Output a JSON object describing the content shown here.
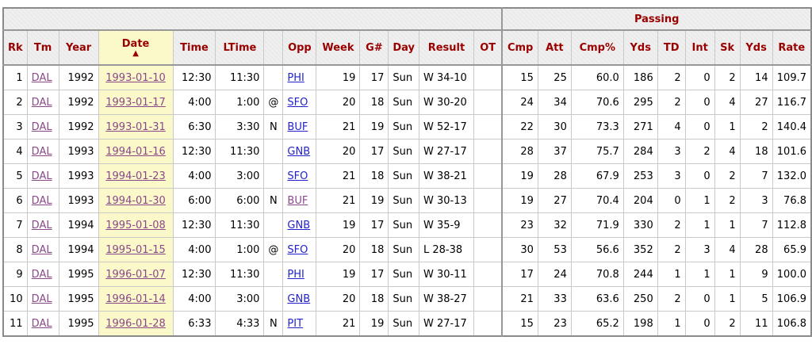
{
  "colors": {
    "header_text": "#990000",
    "header_bg": "#efefef",
    "sort_highlight": "#fbf8c9",
    "link": "#2222cc",
    "visited_link": "#8a4889"
  },
  "table": {
    "group_headers": {
      "blank": "",
      "blank_span": 13,
      "passing": "Passing",
      "passing_span": 9
    },
    "sorted_column": "date",
    "sort_indicator": "▲",
    "columns": [
      {
        "key": "rk",
        "label": "Rk",
        "link": false
      },
      {
        "key": "tm",
        "label": "Tm",
        "link": true
      },
      {
        "key": "year",
        "label": "Year",
        "link": false
      },
      {
        "key": "date",
        "label": "Date",
        "link": true
      },
      {
        "key": "time",
        "label": "Time",
        "link": false
      },
      {
        "key": "ltime",
        "label": "LTime",
        "link": false
      },
      {
        "key": "at",
        "label": "",
        "link": false
      },
      {
        "key": "opp",
        "label": "Opp",
        "link": true
      },
      {
        "key": "week",
        "label": "Week",
        "link": false
      },
      {
        "key": "g",
        "label": "G#",
        "link": false
      },
      {
        "key": "day",
        "label": "Day",
        "link": false
      },
      {
        "key": "result",
        "label": "Result",
        "link": false
      },
      {
        "key": "ot",
        "label": "OT",
        "link": false
      },
      {
        "key": "cmp",
        "label": "Cmp",
        "link": false
      },
      {
        "key": "att",
        "label": "Att",
        "link": false
      },
      {
        "key": "cmppct",
        "label": "Cmp%",
        "link": false
      },
      {
        "key": "yds",
        "label": "Yds",
        "link": false
      },
      {
        "key": "td",
        "label": "TD",
        "link": false
      },
      {
        "key": "int",
        "label": "Int",
        "link": false
      },
      {
        "key": "sk",
        "label": "Sk",
        "link": false
      },
      {
        "key": "skyds",
        "label": "Yds",
        "link": false
      },
      {
        "key": "rate",
        "label": "Rate",
        "link": false
      }
    ],
    "rows": [
      {
        "rk": "1",
        "tm": "DAL",
        "year": "1992",
        "date": "1993-01-10",
        "time": "12:30",
        "ltime": "11:30",
        "at": "",
        "opp": "PHI",
        "opp_visited": false,
        "week": "19",
        "g": "17",
        "day": "Sun",
        "result": "W 34-10",
        "ot": "",
        "cmp": "15",
        "att": "25",
        "cmppct": "60.0",
        "yds": "186",
        "td": "2",
        "int": "0",
        "sk": "2",
        "skyds": "14",
        "rate": "109.7"
      },
      {
        "rk": "2",
        "tm": "DAL",
        "year": "1992",
        "date": "1993-01-17",
        "time": "4:00",
        "ltime": "1:00",
        "at": "@",
        "opp": "SFO",
        "opp_visited": false,
        "week": "20",
        "g": "18",
        "day": "Sun",
        "result": "W 30-20",
        "ot": "",
        "cmp": "24",
        "att": "34",
        "cmppct": "70.6",
        "yds": "295",
        "td": "2",
        "int": "0",
        "sk": "4",
        "skyds": "27",
        "rate": "116.7"
      },
      {
        "rk": "3",
        "tm": "DAL",
        "year": "1992",
        "date": "1993-01-31",
        "time": "6:30",
        "ltime": "3:30",
        "at": "N",
        "opp": "BUF",
        "opp_visited": false,
        "week": "21",
        "g": "19",
        "day": "Sun",
        "result": "W 52-17",
        "ot": "",
        "cmp": "22",
        "att": "30",
        "cmppct": "73.3",
        "yds": "271",
        "td": "4",
        "int": "0",
        "sk": "1",
        "skyds": "2",
        "rate": "140.4"
      },
      {
        "rk": "4",
        "tm": "DAL",
        "year": "1993",
        "date": "1994-01-16",
        "time": "12:30",
        "ltime": "11:30",
        "at": "",
        "opp": "GNB",
        "opp_visited": false,
        "week": "20",
        "g": "17",
        "day": "Sun",
        "result": "W 27-17",
        "ot": "",
        "cmp": "28",
        "att": "37",
        "cmppct": "75.7",
        "yds": "284",
        "td": "3",
        "int": "2",
        "sk": "4",
        "skyds": "18",
        "rate": "101.6"
      },
      {
        "rk": "5",
        "tm": "DAL",
        "year": "1993",
        "date": "1994-01-23",
        "time": "4:00",
        "ltime": "3:00",
        "at": "",
        "opp": "SFO",
        "opp_visited": false,
        "week": "21",
        "g": "18",
        "day": "Sun",
        "result": "W 38-21",
        "ot": "",
        "cmp": "19",
        "att": "28",
        "cmppct": "67.9",
        "yds": "253",
        "td": "3",
        "int": "0",
        "sk": "2",
        "skyds": "7",
        "rate": "132.0"
      },
      {
        "rk": "6",
        "tm": "DAL",
        "year": "1993",
        "date": "1994-01-30",
        "time": "6:00",
        "ltime": "6:00",
        "at": "N",
        "opp": "BUF",
        "opp_visited": true,
        "week": "21",
        "g": "19",
        "day": "Sun",
        "result": "W 30-13",
        "ot": "",
        "cmp": "19",
        "att": "27",
        "cmppct": "70.4",
        "yds": "204",
        "td": "0",
        "int": "1",
        "sk": "2",
        "skyds": "3",
        "rate": "76.8"
      },
      {
        "rk": "7",
        "tm": "DAL",
        "year": "1994",
        "date": "1995-01-08",
        "time": "12:30",
        "ltime": "11:30",
        "at": "",
        "opp": "GNB",
        "opp_visited": false,
        "week": "19",
        "g": "17",
        "day": "Sun",
        "result": "W 35-9",
        "ot": "",
        "cmp": "23",
        "att": "32",
        "cmppct": "71.9",
        "yds": "330",
        "td": "2",
        "int": "1",
        "sk": "1",
        "skyds": "7",
        "rate": "112.8"
      },
      {
        "rk": "8",
        "tm": "DAL",
        "year": "1994",
        "date": "1995-01-15",
        "time": "4:00",
        "ltime": "1:00",
        "at": "@",
        "opp": "SFO",
        "opp_visited": false,
        "week": "20",
        "g": "18",
        "day": "Sun",
        "result": "L 28-38",
        "ot": "",
        "cmp": "30",
        "att": "53",
        "cmppct": "56.6",
        "yds": "352",
        "td": "2",
        "int": "3",
        "sk": "4",
        "skyds": "28",
        "rate": "65.9"
      },
      {
        "rk": "9",
        "tm": "DAL",
        "year": "1995",
        "date": "1996-01-07",
        "time": "12:30",
        "ltime": "11:30",
        "at": "",
        "opp": "PHI",
        "opp_visited": false,
        "week": "19",
        "g": "17",
        "day": "Sun",
        "result": "W 30-11",
        "ot": "",
        "cmp": "17",
        "att": "24",
        "cmppct": "70.8",
        "yds": "244",
        "td": "1",
        "int": "1",
        "sk": "1",
        "skyds": "9",
        "rate": "100.0"
      },
      {
        "rk": "10",
        "tm": "DAL",
        "year": "1995",
        "date": "1996-01-14",
        "time": "4:00",
        "ltime": "3:00",
        "at": "",
        "opp": "GNB",
        "opp_visited": false,
        "week": "20",
        "g": "18",
        "day": "Sun",
        "result": "W 38-27",
        "ot": "",
        "cmp": "21",
        "att": "33",
        "cmppct": "63.6",
        "yds": "250",
        "td": "2",
        "int": "0",
        "sk": "1",
        "skyds": "5",
        "rate": "106.9"
      },
      {
        "rk": "11",
        "tm": "DAL",
        "year": "1995",
        "date": "1996-01-28",
        "time": "6:33",
        "ltime": "4:33",
        "at": "N",
        "opp": "PIT",
        "opp_visited": false,
        "week": "21",
        "g": "19",
        "day": "Sun",
        "result": "W 27-17",
        "ot": "",
        "cmp": "15",
        "att": "23",
        "cmppct": "65.2",
        "yds": "198",
        "td": "1",
        "int": "0",
        "sk": "2",
        "skyds": "11",
        "rate": "106.8"
      }
    ]
  }
}
